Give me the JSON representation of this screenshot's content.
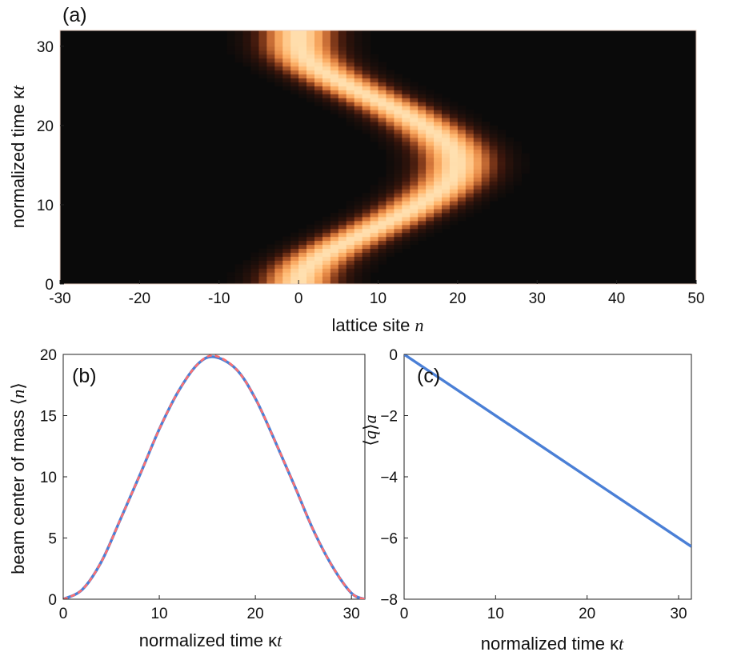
{
  "panels": [
    {
      "id": "a",
      "panel_label": "(a)",
      "xlabel": {
        "prefix": "lattice site ",
        "var": "n"
      },
      "ylabel": {
        "prefix": "normalized time  κ",
        "var": "t"
      },
      "xticks": [
        "-30",
        "-20",
        "-10",
        "0",
        "10",
        "20",
        "30",
        "40",
        "50"
      ],
      "yticks": [
        "0",
        "10",
        "20",
        "30"
      ]
    },
    {
      "id": "b",
      "panel_label": "(b)",
      "xlabel": {
        "prefix": "normalized time κ",
        "var": "t"
      },
      "ylabel": {
        "prefix": "beam center of mass ",
        "open": "⟨",
        "var": "n",
        "close": "⟩"
      },
      "xticks": [
        "0",
        "10",
        "20",
        "30"
      ],
      "yticks": [
        "0",
        "5",
        "10",
        "15",
        "20"
      ]
    },
    {
      "id": "c",
      "panel_label": "(c)",
      "xlabel": {
        "prefix": "normalized time κ",
        "var": "t"
      },
      "ylabel": {
        "open": "⟨",
        "var": "q",
        "close": "⟩",
        "var2": "a"
      },
      "xticks": [
        "0",
        "10",
        "20",
        "30"
      ],
      "yticks": [
        "0",
        "−2",
        "−4",
        "−6",
        "−8"
      ]
    }
  ],
  "chart_data": [
    {
      "type": "heatmap",
      "panel": "a",
      "xlabel": "lattice site n",
      "ylabel": "normalized time κt",
      "xlim": [
        -30,
        50
      ],
      "ylim": [
        0,
        32
      ],
      "colormap": [
        "#0a0a0a",
        "#3a160c",
        "#8a3e1c",
        "#e0803f",
        "#ffb56c",
        "#ffe0b0"
      ],
      "beam": {
        "center_x": [
          0.0,
          0.06,
          0.25,
          0.55,
          0.97,
          1.5,
          2.13,
          2.85,
          3.63,
          4.5,
          5.43,
          6.4,
          7.38,
          8.38,
          9.4,
          10.4,
          11.4,
          12.4,
          13.3,
          14.2,
          15.0,
          15.8,
          16.5,
          17.3,
          17.9,
          18.5,
          19.0,
          19.3,
          19.6,
          19.8,
          19.9,
          19.9,
          19.8,
          19.6,
          19.3,
          18.9,
          18.4,
          17.8,
          17.2,
          16.5,
          15.7,
          14.9,
          14.1,
          13.2,
          12.3,
          11.3,
          10.3,
          9.3,
          8.3,
          7.3,
          6.3,
          5.4,
          4.5,
          3.6,
          2.8,
          2.1,
          1.5,
          0.96,
          0.55,
          0.25,
          0.06,
          0.0
        ],
        "center_t_step": 0.5,
        "width_sites": 4.5
      }
    },
    {
      "type": "line",
      "panel": "b",
      "xlabel": "normalized time κt",
      "ylabel": "beam center of mass ⟨n⟩",
      "xlim": [
        0,
        31.4
      ],
      "ylim": [
        0,
        20
      ],
      "series": [
        {
          "color": "#4a7fd6",
          "style": "solid",
          "x": [
            0,
            2,
            4,
            6,
            8,
            10,
            12,
            14,
            15.7,
            18,
            20,
            22,
            24,
            26,
            28,
            30,
            31.4
          ],
          "y": [
            0,
            0.8,
            3.1,
            6.6,
            10.2,
            13.9,
            17.0,
            19.2,
            19.8,
            18.8,
            16.4,
            13.0,
            9.4,
            5.7,
            2.7,
            0.5,
            0
          ]
        },
        {
          "color": "#ff6f6f",
          "style": "dashed",
          "x": [
            0,
            2,
            4,
            6,
            8,
            10,
            12,
            14,
            15.7,
            18,
            20,
            22,
            24,
            26,
            28,
            30,
            31.4
          ],
          "y": [
            0,
            0.8,
            3.1,
            6.6,
            10.2,
            13.9,
            17.0,
            19.2,
            19.9,
            18.8,
            16.4,
            13.0,
            9.4,
            5.7,
            2.7,
            0.5,
            0
          ]
        }
      ]
    },
    {
      "type": "line",
      "panel": "c",
      "xlabel": "normalized time κt",
      "ylabel": "⟨q⟩a",
      "xlim": [
        0,
        31.4
      ],
      "ylim": [
        -8,
        0
      ],
      "series": [
        {
          "color": "#4a7fd6",
          "style": "solid",
          "x": [
            0,
            31.4
          ],
          "y": [
            0,
            -6.28
          ]
        }
      ]
    }
  ]
}
